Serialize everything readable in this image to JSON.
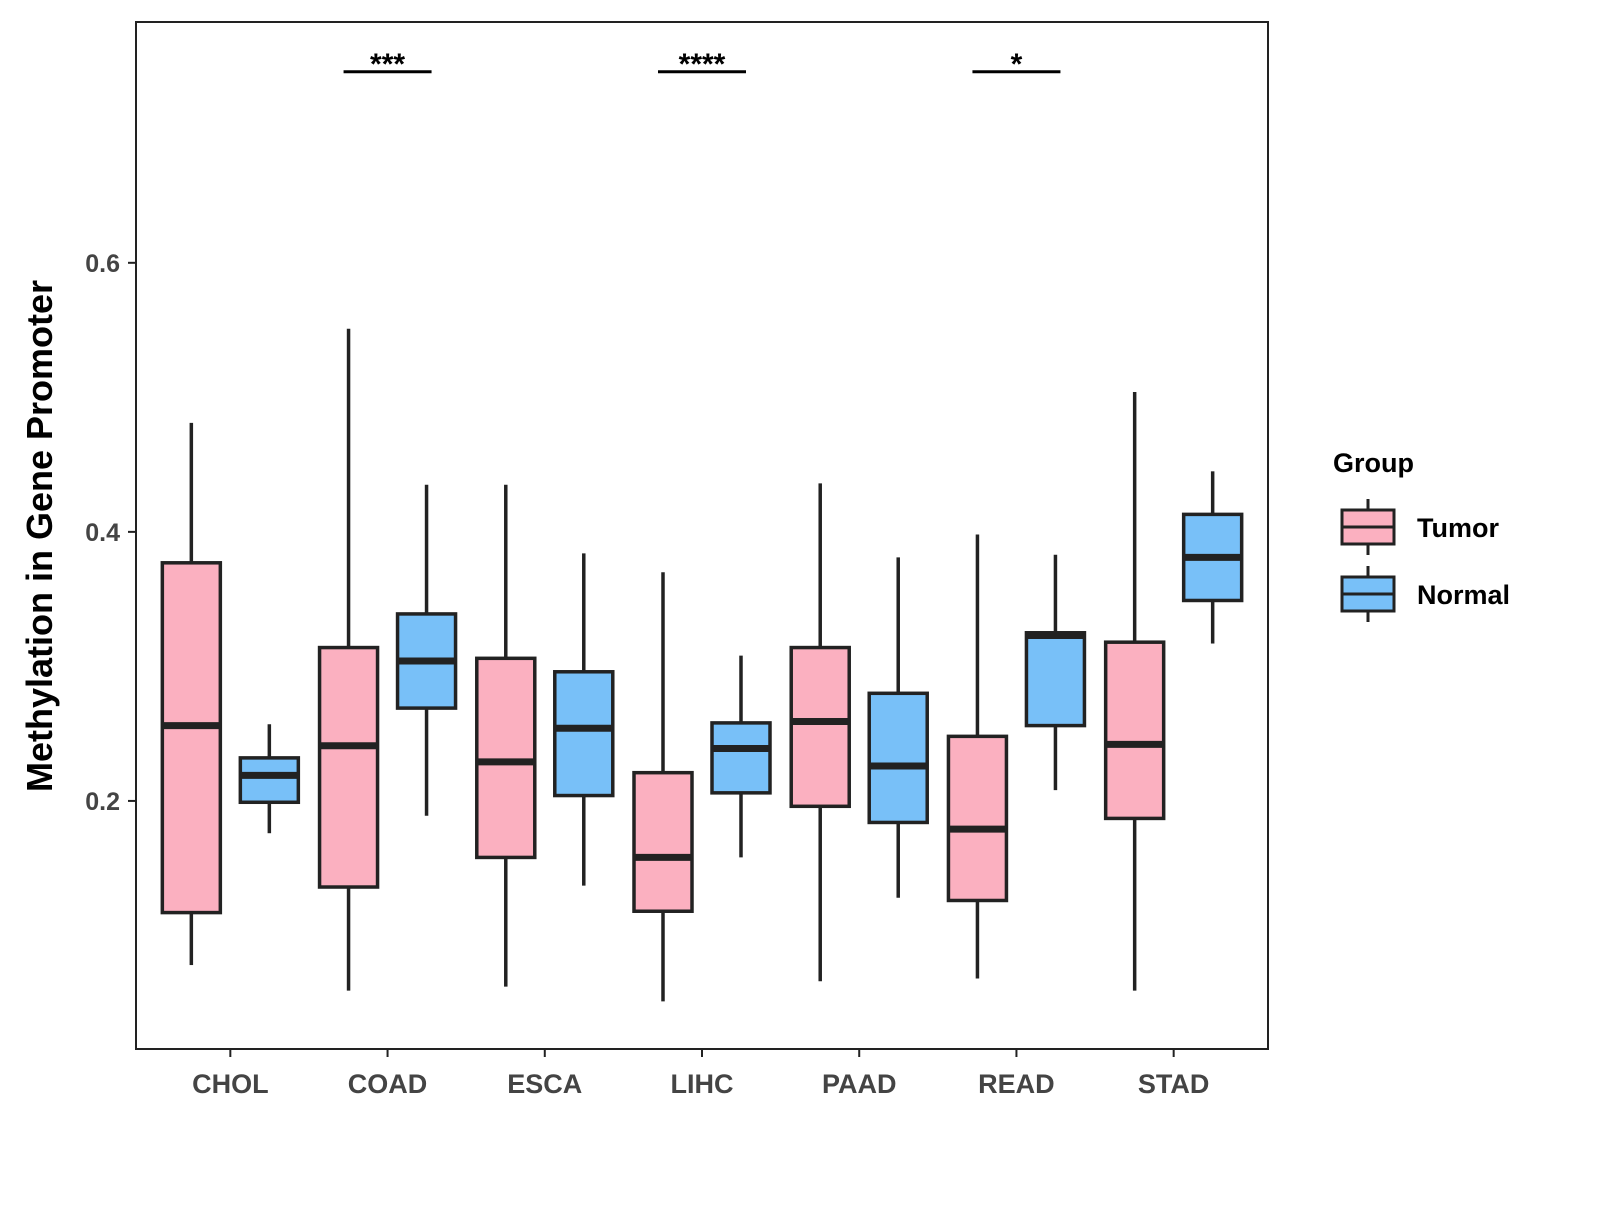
{
  "chart_data": {
    "type": "boxplot",
    "title": "",
    "xlabel": "",
    "ylabel": "Methylation in Gene Promoter",
    "ylim": [
      0.0156,
      0.779
    ],
    "yticks": [
      0.2,
      0.4,
      0.6
    ],
    "ytick_labels": [
      "0.2",
      "0.4",
      "0.6"
    ],
    "categories": [
      "CHOL",
      "COAD",
      "ESCA",
      "LIHC",
      "PAAD",
      "READ",
      "STAD"
    ],
    "legend": {
      "title": "Group",
      "placement": "right",
      "entries": [
        "Tumor",
        "Normal"
      ]
    },
    "colors": {
      "Tumor": "#FBB0C0",
      "Normal": "#78C0F8",
      "stroke": "#222222"
    },
    "series": [
      {
        "name": "Tumor",
        "boxes": [
          {
            "min": 0.078,
            "q1": 0.117,
            "median": 0.256,
            "q3": 0.377,
            "max": 0.481
          },
          {
            "min": 0.059,
            "q1": 0.136,
            "median": 0.241,
            "q3": 0.314,
            "max": 0.551
          },
          {
            "min": 0.062,
            "q1": 0.158,
            "median": 0.229,
            "q3": 0.306,
            "max": 0.435
          },
          {
            "min": 0.051,
            "q1": 0.118,
            "median": 0.158,
            "q3": 0.221,
            "max": 0.37
          },
          {
            "min": 0.066,
            "q1": 0.196,
            "median": 0.259,
            "q3": 0.314,
            "max": 0.436
          },
          {
            "min": 0.068,
            "q1": 0.126,
            "median": 0.179,
            "q3": 0.248,
            "max": 0.398
          },
          {
            "min": 0.059,
            "q1": 0.187,
            "median": 0.242,
            "q3": 0.318,
            "max": 0.504
          }
        ]
      },
      {
        "name": "Normal",
        "boxes": [
          {
            "min": 0.176,
            "q1": 0.199,
            "median": 0.219,
            "q3": 0.232,
            "max": 0.257
          },
          {
            "min": 0.189,
            "q1": 0.269,
            "median": 0.304,
            "q3": 0.339,
            "max": 0.435
          },
          {
            "min": 0.137,
            "q1": 0.204,
            "median": 0.254,
            "q3": 0.296,
            "max": 0.384
          },
          {
            "min": 0.158,
            "q1": 0.206,
            "median": 0.239,
            "q3": 0.258,
            "max": 0.308
          },
          {
            "min": 0.128,
            "q1": 0.184,
            "median": 0.226,
            "q3": 0.28,
            "max": 0.381
          },
          {
            "min": 0.208,
            "q1": 0.256,
            "median": 0.323,
            "q3": 0.325,
            "max": 0.383
          },
          {
            "min": 0.317,
            "q1": 0.349,
            "median": 0.381,
            "q3": 0.413,
            "max": 0.445
          }
        ]
      }
    ],
    "annotations": [
      {
        "category": "COAD",
        "label": "***",
        "y": 0.742
      },
      {
        "category": "LIHC",
        "label": "****",
        "y": 0.742
      },
      {
        "category": "READ",
        "label": "*",
        "y": 0.742
      }
    ]
  }
}
